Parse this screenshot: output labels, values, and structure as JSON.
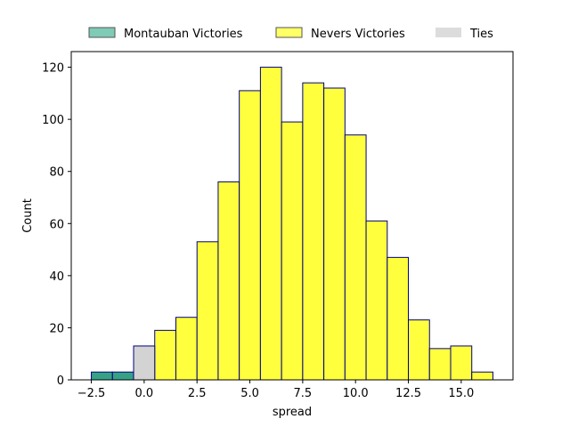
{
  "chart_data": {
    "type": "bar",
    "title": "",
    "xlabel": "spread",
    "ylabel": "Count",
    "xlim": [
      -3.45,
      17.45
    ],
    "ylim": [
      0,
      126
    ],
    "x_ticks": [
      -2.5,
      0.0,
      2.5,
      5.0,
      7.5,
      10.0,
      12.5,
      15.0
    ],
    "x_tick_labels": [
      "−2.5",
      "0.0",
      "2.5",
      "5.0",
      "7.5",
      "10.0",
      "12.5",
      "15.0"
    ],
    "y_ticks": [
      0,
      20,
      40,
      60,
      80,
      100,
      120
    ],
    "y_tick_labels": [
      "0",
      "20",
      "40",
      "60",
      "80",
      "100",
      "120"
    ],
    "bin_width": 1,
    "legend": {
      "placement": "top-center, above plot"
    },
    "series": [
      {
        "name": "Montauban Victories",
        "color": "#2a9d7f",
        "legend_color": "#7fcbb5",
        "bins": [
          {
            "start": -2.5,
            "value": 3
          },
          {
            "start": -1.5,
            "value": 3
          }
        ]
      },
      {
        "name": "Nevers Victories",
        "color": "#ffff33",
        "legend_color": "#ffff66",
        "bins": [
          {
            "start": 0.5,
            "value": 19
          },
          {
            "start": 1.5,
            "value": 24
          },
          {
            "start": 2.5,
            "value": 53
          },
          {
            "start": 3.5,
            "value": 76
          },
          {
            "start": 4.5,
            "value": 111
          },
          {
            "start": 5.5,
            "value": 120
          },
          {
            "start": 6.5,
            "value": 99
          },
          {
            "start": 7.5,
            "value": 114
          },
          {
            "start": 8.5,
            "value": 112
          },
          {
            "start": 9.5,
            "value": 94
          },
          {
            "start": 10.5,
            "value": 61
          },
          {
            "start": 11.5,
            "value": 47
          },
          {
            "start": 12.5,
            "value": 23
          },
          {
            "start": 13.5,
            "value": 12
          },
          {
            "start": 14.5,
            "value": 13
          },
          {
            "start": 15.5,
            "value": 3
          }
        ]
      },
      {
        "name": "Ties",
        "color": "#d3d3d3",
        "legend_color": "#dcdcdc",
        "bins": [
          {
            "start": -0.5,
            "value": 13
          }
        ]
      }
    ],
    "bar_edge_color": "#000080"
  }
}
